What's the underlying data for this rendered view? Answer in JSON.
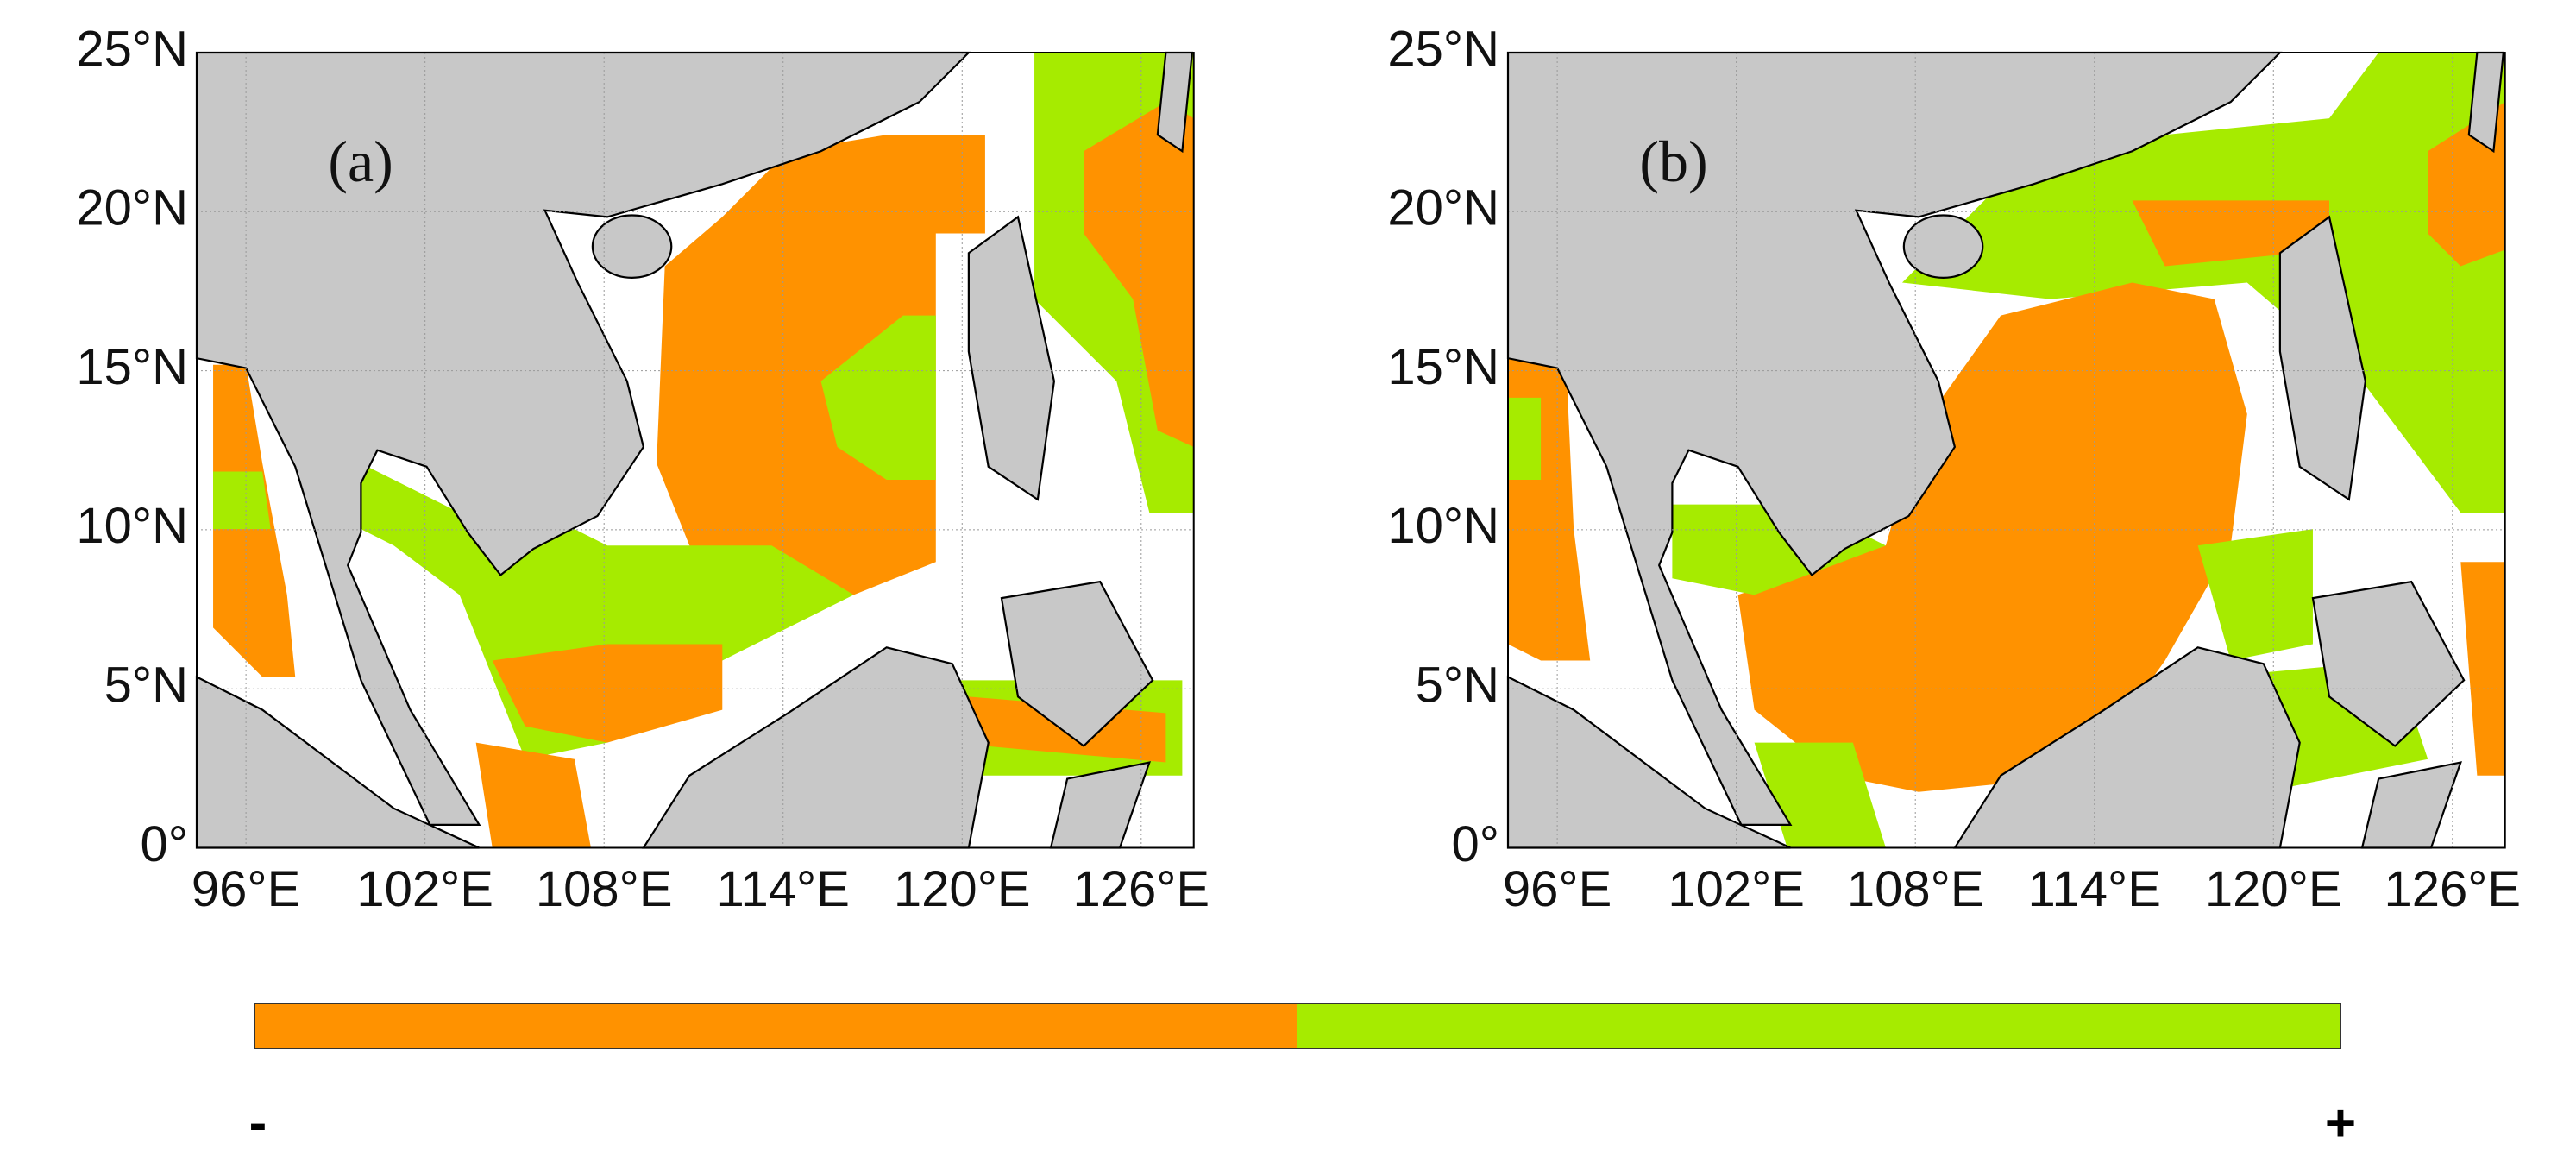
{
  "panels": [
    {
      "label": "(a)"
    },
    {
      "label": "(b)"
    }
  ],
  "axes": {
    "xticks": [
      "96°E",
      "102°E",
      "108°E",
      "114°E",
      "120°E",
      "126°E"
    ],
    "yticks": [
      "0°",
      "5°N",
      "10°N",
      "15°N",
      "20°N",
      "25°N"
    ]
  },
  "colorbar": {
    "colors": [
      "#ff9200",
      "#a6eb00"
    ],
    "min_label": "-",
    "max_label": "+"
  }
}
